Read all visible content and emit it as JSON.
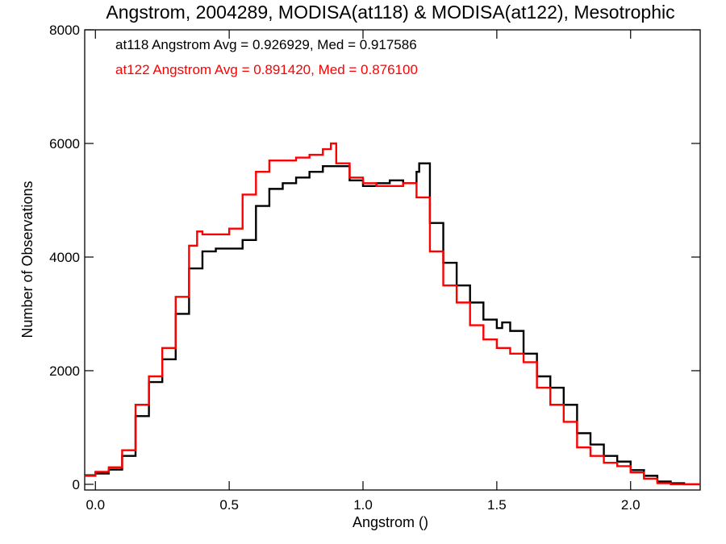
{
  "chart_data": {
    "type": "line",
    "step": true,
    "title": "Angstrom, 2004289, MODISA(at118) & MODISA(at122), Mesotrophic",
    "xlabel": "Angstrom ()",
    "ylabel": "Number of Observations",
    "xlim": [
      -0.04,
      2.26
    ],
    "ylim": [
      -100,
      8000
    ],
    "xticks": [
      0.0,
      0.5,
      1.0,
      1.5,
      2.0
    ],
    "xtick_labels": [
      "0.0",
      "0.5",
      "1.0",
      "1.5",
      "2.0"
    ],
    "yticks": [
      0,
      2000,
      4000,
      6000,
      8000
    ],
    "ytick_labels": [
      "0",
      "2000",
      "4000",
      "6000",
      "8000"
    ],
    "grid": false,
    "annotations": [
      {
        "text": "at118 Angstrom Avg = 0.926929, Med = 0.917586",
        "color": "#000000"
      },
      {
        "text": "at122 Angstrom Avg = 0.891420, Med = 0.876100",
        "color": "#ff0000"
      }
    ],
    "series": [
      {
        "color": "#000000",
        "x": [
          -0.04,
          0.0,
          0.05,
          0.1,
          0.15,
          0.2,
          0.25,
          0.3,
          0.35,
          0.4,
          0.45,
          0.5,
          0.55,
          0.6,
          0.65,
          0.7,
          0.75,
          0.8,
          0.85,
          0.9,
          0.95,
          1.0,
          1.05,
          1.1,
          1.15,
          1.2,
          1.21,
          1.25,
          1.3,
          1.35,
          1.4,
          1.45,
          1.5,
          1.52,
          1.55,
          1.6,
          1.65,
          1.7,
          1.75,
          1.8,
          1.85,
          1.9,
          1.95,
          2.0,
          2.05,
          2.1,
          2.15,
          2.2,
          2.26
        ],
        "y": [
          160,
          190,
          260,
          500,
          1200,
          1800,
          2200,
          3000,
          3800,
          4100,
          4150,
          4150,
          4300,
          4900,
          5200,
          5300,
          5400,
          5500,
          5600,
          5600,
          5350,
          5250,
          5300,
          5350,
          5300,
          5500,
          5650,
          4600,
          3900,
          3500,
          3200,
          2900,
          2750,
          2850,
          2700,
          2300,
          1900,
          1700,
          1400,
          900,
          700,
          500,
          400,
          250,
          150,
          50,
          20,
          0,
          0
        ]
      },
      {
        "color": "#ff0000",
        "x": [
          -0.04,
          0.0,
          0.05,
          0.1,
          0.15,
          0.2,
          0.25,
          0.3,
          0.35,
          0.38,
          0.4,
          0.45,
          0.5,
          0.55,
          0.6,
          0.65,
          0.7,
          0.75,
          0.8,
          0.85,
          0.88,
          0.9,
          0.95,
          1.0,
          1.05,
          1.1,
          1.15,
          1.2,
          1.25,
          1.3,
          1.35,
          1.4,
          1.45,
          1.5,
          1.55,
          1.6,
          1.65,
          1.7,
          1.75,
          1.8,
          1.85,
          1.9,
          1.95,
          2.0,
          2.05,
          2.1,
          2.15,
          2.2,
          2.26
        ],
        "y": [
          150,
          220,
          300,
          600,
          1400,
          1900,
          2400,
          3300,
          4200,
          4450,
          4400,
          4400,
          4500,
          5100,
          5500,
          5700,
          5700,
          5750,
          5800,
          5900,
          6000,
          5650,
          5400,
          5300,
          5250,
          5250,
          5300,
          5050,
          4100,
          3500,
          3200,
          2800,
          2550,
          2400,
          2300,
          2150,
          1700,
          1400,
          1100,
          650,
          500,
          380,
          320,
          210,
          100,
          20,
          0,
          0,
          0
        ]
      }
    ]
  }
}
